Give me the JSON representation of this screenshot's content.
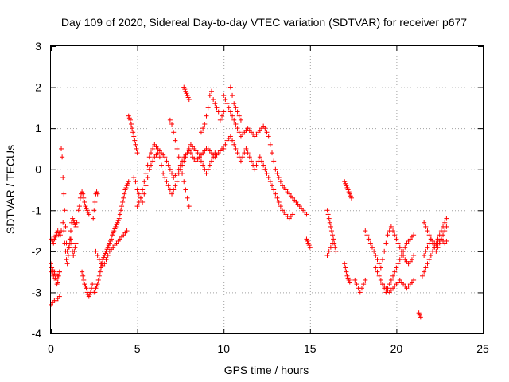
{
  "chart_data": {
    "type": "scatter",
    "title": "Day 109 of 2020, Sidereal Day-to-day VTEC variation (SDTVAR) for receiver p677",
    "xlabel": "GPS time / hours",
    "ylabel": "SDTVAR / TECUs",
    "xlim": [
      0,
      25
    ],
    "ylim": [
      -4,
      3
    ],
    "xticks": [
      "0",
      "5",
      "10",
      "15",
      "20",
      "25"
    ],
    "yticks": [
      "-4",
      "-3",
      "-2",
      "-1",
      "0",
      "1",
      "2",
      "3"
    ],
    "grid": true,
    "marker": "+",
    "color": "#ff0000",
    "series": [
      {
        "name": "p677",
        "x": [
          0.0,
          0.05,
          0.1,
          0.15,
          0.2,
          0.25,
          0.3,
          0.35,
          0.4,
          0.45,
          0.5,
          0.05,
          0.1,
          0.15,
          0.2,
          0.25,
          0.3,
          0.35,
          0.4,
          0.45,
          0.5,
          0.55,
          0.6,
          0.0,
          0.1,
          0.2,
          0.3,
          0.4,
          0.5,
          0.0,
          0.1,
          0.2,
          0.3,
          0.4,
          0.5,
          0.6,
          0.65,
          0.7,
          0.75,
          0.8,
          0.85,
          0.9,
          0.95,
          1.0,
          1.05,
          1.1,
          1.15,
          1.2,
          1.25,
          1.3,
          1.35,
          1.4,
          1.45,
          1.5,
          0.7,
          0.75,
          0.8,
          0.85,
          0.9,
          0.95,
          1.0,
          1.05,
          1.1,
          1.15,
          1.2,
          1.25,
          1.3,
          1.35,
          1.4,
          1.45,
          1.6,
          1.65,
          1.7,
          1.75,
          1.8,
          1.85,
          1.9,
          1.95,
          2.0,
          2.05,
          2.1,
          2.15,
          2.2,
          1.8,
          1.85,
          1.9,
          1.95,
          2.0,
          2.05,
          2.1,
          2.15,
          2.2,
          2.25,
          2.3,
          2.35,
          2.4,
          2.45,
          2.5,
          2.55,
          2.6,
          2.65,
          2.7,
          2.5,
          2.55,
          2.6,
          2.65,
          2.7,
          2.75,
          2.8,
          2.85,
          2.9,
          2.95,
          3.0,
          3.05,
          3.1,
          3.15,
          3.2,
          3.25,
          3.3,
          3.35,
          3.4,
          3.45,
          3.5,
          3.55,
          3.6,
          3.65,
          3.7,
          3.75,
          3.8,
          3.85,
          3.9,
          3.95,
          4.0,
          4.05,
          4.1,
          4.15,
          4.2,
          4.25,
          4.3,
          4.35,
          4.4,
          4.45,
          4.5,
          2.6,
          2.7,
          2.8,
          2.9,
          3.0,
          3.1,
          3.2,
          3.3,
          3.4,
          3.5,
          3.6,
          3.7,
          3.8,
          3.9,
          4.0,
          4.1,
          4.2,
          4.3,
          4.4,
          4.5,
          4.55,
          4.6,
          4.65,
          4.7,
          4.75,
          4.8,
          4.85,
          4.9,
          4.95,
          5.0,
          4.8,
          4.9,
          5.0,
          5.1,
          5.2,
          5.3,
          5.4,
          5.5,
          5.6,
          5.7,
          5.8,
          5.9,
          6.0,
          6.1,
          6.2,
          6.3,
          6.4,
          6.5,
          6.6,
          6.7,
          6.8,
          6.9,
          7.0,
          7.1,
          7.2,
          7.3,
          7.4,
          7.5,
          7.6,
          7.7,
          7.8,
          7.9,
          8.0,
          8.1,
          8.2,
          8.3,
          8.4,
          8.5,
          8.6,
          8.7,
          8.8,
          8.9,
          9.0,
          9.1,
          9.2,
          9.3,
          9.4,
          9.5,
          9.6,
          9.7,
          9.8,
          9.9,
          5.0,
          5.1,
          5.2,
          5.3,
          5.4,
          5.5,
          5.6,
          5.7,
          5.8,
          5.9,
          6.0,
          6.1,
          6.2,
          6.3,
          6.4,
          6.5,
          6.6,
          6.7,
          6.8,
          6.9,
          7.0,
          7.1,
          7.2,
          7.3,
          7.4,
          7.5,
          7.6,
          7.7,
          7.8,
          7.9,
          8.0,
          8.1,
          8.2,
          8.3,
          8.4,
          8.5,
          8.6,
          8.7,
          8.8,
          8.9,
          9.0,
          9.1,
          9.2,
          9.3,
          9.4,
          9.5,
          6.9,
          7.0,
          7.1,
          7.2,
          7.3,
          7.4,
          7.5,
          7.6,
          7.7,
          7.8,
          7.9,
          8.0,
          7.7,
          7.75,
          7.8,
          7.85,
          7.9,
          7.95,
          8.0,
          8.7,
          8.8,
          8.9,
          9.0,
          9.1,
          9.2,
          9.3,
          9.4,
          9.5,
          9.6,
          9.7,
          9.8,
          9.9,
          10.0,
          10.0,
          10.1,
          10.2,
          10.3,
          10.4,
          10.5,
          10.6,
          10.7,
          10.8,
          10.9,
          11.0,
          11.1,
          11.2,
          11.3,
          11.4,
          11.5,
          11.6,
          11.7,
          11.8,
          11.9,
          12.0,
          12.1,
          12.2,
          12.3,
          12.4,
          12.5,
          12.6,
          12.7,
          12.8,
          12.9,
          13.0,
          13.1,
          13.2,
          13.3,
          13.4,
          13.5,
          13.6,
          13.7,
          13.8,
          13.9,
          14.0,
          14.1,
          14.2,
          14.3,
          14.4,
          14.5,
          14.6,
          14.7,
          14.8,
          10.0,
          10.1,
          10.2,
          10.3,
          10.4,
          10.5,
          10.6,
          10.7,
          10.8,
          10.9,
          11.0,
          11.1,
          11.2,
          11.3,
          11.4,
          11.5,
          11.6,
          11.7,
          11.8,
          11.9,
          12.0,
          12.1,
          12.2,
          12.3,
          12.4,
          12.5,
          12.6,
          12.7,
          12.8,
          12.9,
          13.0,
          13.1,
          13.2,
          13.3,
          13.4,
          13.5,
          13.6,
          13.7,
          13.8,
          13.9,
          14.0,
          10.4,
          10.5,
          10.6,
          10.7,
          10.8,
          10.9,
          11.0,
          14.8,
          14.85,
          14.9,
          14.95,
          15.0,
          16.0,
          16.05,
          16.1,
          16.15,
          16.2,
          16.25,
          16.3,
          16.35,
          16.4,
          16.45,
          16.5,
          16.0,
          16.1,
          16.2,
          16.3,
          17.0,
          17.05,
          17.1,
          17.15,
          17.2,
          17.25,
          17.3,
          17.35,
          17.4,
          17.0,
          17.05,
          17.1,
          17.15,
          17.2,
          17.25,
          17.3,
          17.6,
          17.7,
          17.8,
          17.9,
          18.0,
          18.1,
          18.2,
          18.2,
          18.3,
          18.4,
          18.5,
          18.6,
          18.7,
          18.8,
          18.9,
          19.0,
          19.1,
          19.2,
          19.3,
          19.4,
          19.5,
          19.6,
          19.7,
          19.8,
          19.9,
          20.0,
          20.1,
          20.2,
          20.3,
          20.4,
          20.5,
          20.6,
          20.7,
          20.8,
          20.9,
          21.0,
          18.8,
          18.9,
          19.0,
          19.1,
          19.2,
          19.3,
          19.4,
          19.5,
          19.6,
          19.7,
          19.8,
          19.9,
          20.0,
          20.1,
          20.2,
          20.3,
          20.4,
          20.5,
          20.6,
          20.7,
          20.8,
          20.9,
          21.0,
          19.2,
          19.3,
          19.4,
          19.5,
          19.6,
          19.7,
          19.8,
          19.9,
          20.0,
          20.1,
          20.2,
          20.3,
          20.4,
          20.5,
          20.6,
          20.7,
          20.8,
          20.9,
          21.0,
          21.3,
          21.35,
          21.4,
          21.5,
          21.6,
          21.7,
          21.8,
          21.9,
          22.0,
          22.1,
          22.2,
          22.3,
          22.4,
          22.5,
          22.6,
          22.7,
          22.8,
          22.9,
          21.6,
          21.7,
          21.8,
          21.9,
          22.0,
          22.1,
          22.2,
          22.3,
          22.4,
          22.5,
          22.6,
          22.7,
          22.8,
          22.9,
          21.6,
          21.7,
          21.8,
          21.9,
          22.0,
          22.1,
          22.2,
          22.3,
          22.4,
          22.5,
          22.6,
          22.7,
          22.8,
          22.9
        ],
        "y": [
          -2.3,
          -2.4,
          -2.5,
          -2.6,
          -2.55,
          -2.65,
          -2.7,
          -2.8,
          -2.75,
          -2.6,
          -2.5,
          -1.7,
          -1.75,
          -1.8,
          -1.7,
          -1.65,
          -1.6,
          -1.55,
          -1.5,
          -1.6,
          -1.55,
          -1.6,
          -1.5,
          -3.3,
          -3.25,
          -3.2,
          -3.2,
          -3.15,
          -3.1,
          -2.5,
          -2.45,
          -2.5,
          -2.55,
          -2.6,
          -2.5,
          0.5,
          0.3,
          -0.2,
          -0.6,
          -1.0,
          -1.4,
          -1.8,
          -2.0,
          -2.1,
          -1.9,
          -1.7,
          -1.5,
          -1.3,
          -1.2,
          -1.25,
          -1.3,
          -1.35,
          -1.4,
          -1.3,
          -1.3,
          -1.5,
          -1.8,
          -2.0,
          -2.2,
          -2.3,
          -2.1,
          -1.9,
          -1.8,
          -1.7,
          -1.8,
          -2.0,
          -2.1,
          -2.0,
          -1.9,
          -1.8,
          -1.0,
          -0.9,
          -0.7,
          -0.6,
          -0.55,
          -0.6,
          -0.7,
          -0.8,
          -0.9,
          -0.95,
          -1.0,
          -1.05,
          -1.1,
          -2.5,
          -2.6,
          -2.7,
          -2.8,
          -2.85,
          -2.9,
          -3.0,
          -3.05,
          -3.1,
          -3.05,
          -3.0,
          -2.9,
          -2.8,
          -1.2,
          -1.0,
          -0.8,
          -0.6,
          -0.55,
          -0.6,
          -3.0,
          -3.0,
          -2.9,
          -2.85,
          -2.8,
          -2.7,
          -2.6,
          -2.5,
          -2.4,
          -2.3,
          -2.2,
          -2.15,
          -2.1,
          -2.05,
          -2.0,
          -1.95,
          -1.9,
          -1.85,
          -1.8,
          -1.75,
          -1.7,
          -1.6,
          -1.55,
          -1.5,
          -1.45,
          -1.4,
          -1.35,
          -1.3,
          -1.25,
          -1.2,
          -1.1,
          -1.0,
          -0.9,
          -0.8,
          -0.7,
          -0.6,
          -0.5,
          -0.45,
          -0.4,
          -0.35,
          -0.3,
          -2.0,
          -2.1,
          -2.2,
          -2.3,
          -2.35,
          -2.3,
          -2.2,
          -2.1,
          -2.0,
          -1.95,
          -1.9,
          -1.85,
          -1.8,
          -1.75,
          -1.7,
          -1.65,
          -1.6,
          -1.55,
          -1.5,
          1.3,
          1.25,
          1.2,
          1.1,
          1.0,
          0.9,
          0.8,
          0.7,
          0.6,
          0.5,
          0.4,
          -0.2,
          -0.3,
          -0.5,
          -0.6,
          -0.7,
          -0.8,
          -0.6,
          -0.4,
          -0.2,
          0.0,
          0.1,
          0.2,
          0.3,
          0.35,
          0.4,
          0.45,
          0.4,
          0.35,
          0.3,
          0.2,
          0.1,
          0.0,
          -0.1,
          -0.2,
          -0.15,
          -0.1,
          0.0,
          0.1,
          0.2,
          0.3,
          0.35,
          0.4,
          0.45,
          0.4,
          0.3,
          0.25,
          0.2,
          0.25,
          0.3,
          0.35,
          0.4,
          0.45,
          0.5,
          0.5,
          0.45,
          0.4,
          0.35,
          0.3,
          0.35,
          0.4,
          0.45,
          0.5,
          -0.9,
          -0.8,
          -0.7,
          -0.5,
          -0.3,
          -0.1,
          0.1,
          0.3,
          0.4,
          0.5,
          0.6,
          0.55,
          0.5,
          0.3,
          0.1,
          -0.1,
          -0.2,
          -0.3,
          -0.4,
          -0.5,
          -0.6,
          -0.5,
          -0.4,
          -0.3,
          -0.1,
          0.0,
          0.1,
          0.2,
          0.3,
          0.4,
          0.5,
          0.6,
          0.55,
          0.5,
          0.45,
          0.4,
          0.3,
          0.2,
          0.1,
          0.0,
          -0.1,
          0.0,
          0.1,
          0.2,
          0.3,
          0.4,
          1.2,
          1.1,
          0.9,
          0.7,
          0.5,
          0.3,
          0.1,
          -0.1,
          -0.3,
          -0.5,
          -0.7,
          -0.9,
          2.0,
          1.95,
          1.9,
          1.85,
          1.8,
          1.75,
          1.7,
          0.9,
          1.0,
          1.1,
          1.3,
          1.5,
          1.8,
          1.9,
          1.7,
          1.6,
          1.5,
          1.4,
          1.2,
          1.3,
          1.4,
          1.8,
          1.7,
          1.6,
          1.5,
          1.4,
          1.3,
          1.2,
          1.1,
          1.0,
          0.9,
          0.8,
          0.85,
          0.9,
          0.95,
          1.0,
          0.95,
          0.9,
          0.85,
          0.8,
          0.85,
          0.9,
          0.95,
          1.0,
          1.05,
          1.0,
          0.9,
          0.8,
          0.6,
          0.4,
          0.2,
          0.0,
          -0.1,
          -0.2,
          -0.3,
          -0.4,
          -0.45,
          -0.5,
          -0.55,
          -0.6,
          -0.65,
          -0.7,
          -0.75,
          -0.8,
          -0.85,
          -0.9,
          -0.95,
          -1.0,
          -1.05,
          -1.1,
          0.5,
          0.6,
          0.7,
          0.75,
          0.8,
          0.7,
          0.6,
          0.5,
          0.4,
          0.3,
          0.2,
          0.3,
          0.4,
          0.5,
          0.4,
          0.3,
          0.2,
          0.1,
          0.0,
          0.1,
          0.2,
          0.3,
          0.2,
          0.1,
          0.0,
          -0.1,
          -0.2,
          -0.3,
          -0.4,
          -0.5,
          -0.6,
          -0.7,
          -0.8,
          -0.9,
          -1.0,
          -1.05,
          -1.1,
          -1.15,
          -1.2,
          -1.15,
          -1.1,
          2.0,
          1.8,
          1.6,
          1.5,
          1.4,
          1.3,
          1.2,
          -1.7,
          -1.75,
          -1.8,
          -1.85,
          -1.9,
          -1.0,
          -1.1,
          -1.2,
          -1.3,
          -1.4,
          -1.5,
          -1.6,
          -1.7,
          -1.8,
          -1.9,
          -2.0,
          -2.1,
          -2.0,
          -1.9,
          -1.8,
          -0.3,
          -0.35,
          -0.4,
          -0.45,
          -0.5,
          -0.55,
          -0.6,
          -0.65,
          -0.7,
          -2.3,
          -2.4,
          -2.5,
          -2.6,
          -2.65,
          -2.7,
          -2.75,
          -2.7,
          -2.8,
          -2.9,
          -3.0,
          -2.9,
          -2.8,
          -2.7,
          -1.5,
          -1.6,
          -1.7,
          -1.8,
          -1.9,
          -2.0,
          -2.1,
          -2.2,
          -2.3,
          -2.4,
          -2.2,
          -2.0,
          -1.8,
          -1.6,
          -1.5,
          -1.4,
          -1.5,
          -1.6,
          -1.7,
          -1.8,
          -1.9,
          -2.0,
          -2.1,
          -2.2,
          -2.25,
          -2.3,
          -2.25,
          -2.2,
          -2.1,
          -2.4,
          -2.5,
          -2.6,
          -2.7,
          -2.8,
          -2.9,
          -3.0,
          -2.9,
          -2.8,
          -2.7,
          -2.6,
          -2.5,
          -2.4,
          -2.3,
          -2.2,
          -2.1,
          -2.0,
          -1.9,
          -1.8,
          -1.75,
          -1.7,
          -1.65,
          -1.6,
          -2.8,
          -2.85,
          -2.9,
          -2.95,
          -3.0,
          -2.95,
          -2.9,
          -2.85,
          -2.8,
          -2.75,
          -2.7,
          -2.75,
          -2.8,
          -2.85,
          -2.9,
          -2.85,
          -2.8,
          -2.75,
          -2.7,
          -3.5,
          -3.55,
          -3.6,
          -2.6,
          -2.5,
          -2.4,
          -2.3,
          -2.2,
          -2.1,
          -2.0,
          -1.9,
          -1.8,
          -1.7,
          -1.6,
          -1.5,
          -1.4,
          -1.3,
          -1.2,
          -1.3,
          -1.4,
          -1.5,
          -1.6,
          -1.7,
          -1.8,
          -1.9,
          -2.0,
          -1.9,
          -1.8,
          -1.7,
          -1.6,
          -1.5,
          -1.4,
          -2.1,
          -2.0,
          -1.9,
          -1.8,
          -1.7,
          -1.75,
          -1.8,
          -1.85,
          -1.8,
          -1.75,
          -1.7,
          -1.75,
          -1.8,
          -1.75
        ]
      }
    ]
  }
}
